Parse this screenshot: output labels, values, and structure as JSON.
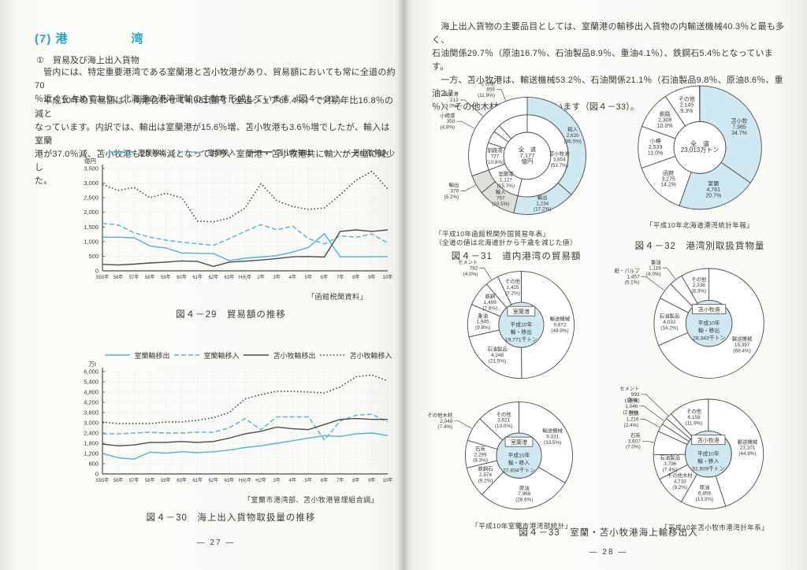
{
  "colors": {
    "accent": "#21a5c9",
    "line_cyan": "#4fb3d6",
    "line_dark": "#4d4b47",
    "pie_cyan": "#cfe9f2",
    "pie_gray": "#dfdfda",
    "ink": "#3b3935"
  },
  "left_page": {
    "page_number": "― 27 ―",
    "heading": "(7) 港　　　　　湾",
    "subheading": "①　貿易及び海上出入貨物",
    "paragraph1": [
      "　管内には、特定重要港湾である室蘭港と苫小牧港があり、貿易額においても常に全道の約70",
      "％近くを占めており、北海道の港湾運輸の主軸を形成しています（図４－31）。"
    ],
    "paragraph2": [
      "　平成10年の貿易額は、両港合わせて4,981億円（全道シェア69.4％）で対前年比16.8％の減と",
      "なっています。内訳では、輸出は室蘭港が15.6％増、苫小牧港も3.6％増でしたが、輸入は室蘭",
      "港が37.0％減、苫小牧港も20.0％減となっており、室蘭港・苫小牧港共に輸入が大幅に減少し",
      "た。"
    ],
    "fig29": {
      "caption": "図４－29　貿易額の推移",
      "source": "「函館税関資料」",
      "chart": {
        "type": "line",
        "unit": "億円",
        "ylim": [
          0,
          3500
        ],
        "yticks": [
          0,
          500,
          1000,
          1500,
          2000,
          2500,
          3000,
          3500
        ],
        "categories": [
          "S55年",
          "56年",
          "57年",
          "58年",
          "59年",
          "60年",
          "61年",
          "62年",
          "63年",
          "H元年",
          "2年",
          "3年",
          "4年",
          "5年",
          "6年",
          "7年",
          "8年",
          "9年",
          "10年"
        ],
        "series": [
          {
            "name": "室蘭輸出",
            "color": "cyan",
            "style": "solid",
            "values": [
              1150,
              1150,
              1130,
              850,
              780,
              610,
              600,
              590,
              350,
              430,
              470,
              520,
              640,
              800,
              1270,
              480,
              480,
              480,
              490
            ]
          },
          {
            "name": "室蘭輸入",
            "color": "cyan",
            "style": "dashed",
            "values": [
              1620,
              1570,
              1300,
              1150,
              1050,
              980,
              930,
              870,
              1100,
              1350,
              1580,
              1400,
              1530,
              1100,
              920,
              1200,
              1150,
              1260,
              950
            ]
          },
          {
            "name": "苫小牧輸出",
            "color": "dark",
            "style": "solid",
            "values": [
              220,
              200,
              230,
              270,
              300,
              340,
              320,
              150,
              300,
              330,
              370,
              420,
              480,
              490,
              470,
              1350,
              1400,
              1350,
              1400
            ]
          },
          {
            "name": "苫小牧輸入",
            "color": "dark",
            "style": "dotted",
            "values": [
              2950,
              2750,
              2850,
              2500,
              2650,
              2500,
              1700,
              1680,
              1800,
              2150,
              2980,
              2400,
              2200,
              2100,
              2150,
              2600,
              3100,
              3400,
              2800
            ]
          }
        ]
      }
    },
    "fig30": {
      "caption": "図４－30　海上出入貨物取扱量の推移",
      "source": "「室蘭市港湾部、苫小牧港管理組合調」",
      "chart": {
        "type": "line",
        "unit": "万t",
        "ylim": [
          0,
          6000
        ],
        "yticks": [
          0,
          600,
          1200,
          1800,
          2400,
          3000,
          3600,
          4200,
          4800,
          5400,
          6000
        ],
        "categories": [
          "S55年",
          "56年",
          "57年",
          "58年",
          "59年",
          "60年",
          "61年",
          "62年",
          "63年",
          "H元年",
          "H2年",
          "3年",
          "4年",
          "5年",
          "6年",
          "7年",
          "8年",
          "9年",
          "10年"
        ],
        "series": [
          {
            "name": "室蘭輸移出",
            "color": "cyan",
            "style": "solid",
            "values": [
              1200,
              950,
              870,
              1280,
              1220,
              1300,
              1250,
              1300,
              1400,
              1550,
              1650,
              1800,
              1950,
              2100,
              2250,
              2200,
              2350,
              2400,
              2250
            ]
          },
          {
            "name": "室蘭輸移入",
            "color": "cyan",
            "style": "dashed",
            "values": [
              2350,
              2350,
              2400,
              2450,
              2400,
              2400,
              2450,
              2450,
              2700,
              3250,
              2600,
              3350,
              3350,
              3350,
              2000,
              3100,
              3450,
              3500,
              3050
            ]
          },
          {
            "name": "苫小牧輸移出",
            "color": "dark",
            "style": "solid",
            "values": [
              1750,
              1650,
              1700,
              1850,
              1850,
              1900,
              1850,
              1900,
              2100,
              2350,
              2500,
              2750,
              2650,
              2600,
              2900,
              3200,
              3250,
              3200,
              3200
            ]
          },
          {
            "name": "苫小牧輸移入",
            "color": "dark",
            "style": "dotted",
            "values": [
              3050,
              2950,
              2950,
              2950,
              3050,
              3050,
              3150,
              3300,
              3600,
              4400,
              4650,
              4850,
              4850,
              4800,
              4750,
              5100,
              5700,
              5800,
              5450
            ]
          }
        ]
      }
    }
  },
  "right_page": {
    "page_number": "― 28 ―",
    "paragraph": [
      "　海上出入貨物の主要品目としては、室蘭港の輸移出入貨物の内輸送機械40.3％と最も多く、",
      "石油関係29.7％（原油16.7％、石油製品8.9％、重油4.1％）、鉄鋼石5.4％となっています。",
      "　一方、苫小牧港は、輸送機械53.2％、石油関係21.1％（石油製品9.8％、原油8.6％、重油2.7",
      "％）、その他木材5.9％となっています（図４－33）。"
    ],
    "fig31": {
      "caption": "図４－31　道内港湾の貿易額",
      "sources": [
        "「平成10年函館税関外国貿易年表」",
        "（全道の値は北海道計から千歳を減じた値）"
      ],
      "chart": {
        "type": "double-donut",
        "center_lines": [
          "全　道",
          "7,177",
          "億円"
        ],
        "inner": [
          {
            "name": "苫小牧港",
            "value": "3,854",
            "share": 53.7,
            "label": "in"
          },
          {
            "name": "室蘭港",
            "value": "1,127",
            "share": 15.7,
            "label": "in"
          },
          {
            "name": "釧路港",
            "value": "777",
            "share": 10.8,
            "label": "in"
          },
          {
            "name": "小樽港",
            "value": "350",
            "share": 4.9,
            "label": "out",
            "ext": 10
          },
          {
            "name": "函館港",
            "value": "213",
            "share": 3.0,
            "label": "out",
            "ext": 22
          },
          {
            "name": "その他",
            "value": "856",
            "share": 11.9,
            "label": "out",
            "ext": 6
          }
        ],
        "outer": [
          {
            "name": "輸入",
            "value": "2,620",
            "share": 36.5,
            "fill": "cyan",
            "label": "in"
          },
          {
            "name": "輸出",
            "value": "1,234",
            "share": 17.2,
            "fill": "cyan",
            "label": "in"
          },
          {
            "name": "輸入",
            "value": "757",
            "share": 10.5,
            "fill": "gray",
            "label": "in"
          },
          {
            "name": "輸出",
            "value": "370",
            "share": 5.2,
            "fill": "gray",
            "label": "out",
            "ext": 6
          },
          {
            "name": "",
            "value": "",
            "share": 30.6,
            "fill": "white",
            "label": "none"
          }
        ]
      }
    },
    "fig32": {
      "caption": "図４－32　港湾別取扱貨物量",
      "source": "「平成10年北海道港湾統計年報」",
      "chart": {
        "type": "donut",
        "center_lines": [
          "全　道",
          "23,013万トン"
        ],
        "slices": [
          {
            "name": "苫小牧",
            "value": "7,985",
            "share": 34.7,
            "fill": "cyan",
            "label": "in"
          },
          {
            "name": "室蘭",
            "value": "4,761",
            "share": 20.7,
            "fill": "cyan",
            "label": "in"
          },
          {
            "name": "函館",
            "value": "3,275",
            "share": 14.2,
            "fill": "white",
            "label": "in"
          },
          {
            "name": "小樽",
            "value": "2,539",
            "share": 11.0,
            "fill": "white",
            "label": "in"
          },
          {
            "name": "釧路",
            "value": "2,308",
            "share": 10.0,
            "fill": "white",
            "label": "in"
          },
          {
            "name": "その他",
            "value": "2,145",
            "share": 9.3,
            "fill": "white",
            "label": "in"
          }
        ]
      }
    },
    "fig33": {
      "caption": "図４－33　室蘭・苫小牧港海上輸移出入",
      "sources": [
        "「平成10年室蘭市港湾部統計」",
        "「平成10年苫小牧市港湾計年系」"
      ],
      "muroran_out": {
        "type": "pie",
        "port": "室蘭港",
        "center_lines": [
          "平成10年",
          "輸・移出",
          "19,771千トン"
        ],
        "slices": [
          {
            "name": "輸送機械",
            "value": "9,872",
            "share": 49.9,
            "label": "in"
          },
          {
            "name": "石油製品",
            "value": "4,248",
            "share": 21.5,
            "label": "in"
          },
          {
            "name": "重油",
            "value": "1,945",
            "share": 9.8,
            "label": "in"
          },
          {
            "name": "鉄鋼",
            "value": "1,499",
            "share": 7.6,
            "label": "in"
          },
          {
            "name": "セメント",
            "value": "782",
            "share": 4.0,
            "label": "out",
            "ext": 8
          },
          {
            "name": "その他",
            "value": "1,425",
            "share": 7.2,
            "label": "in"
          }
        ]
      },
      "tomakomai_out": {
        "type": "pie",
        "port": "苫小牧港",
        "center_lines": [
          "平成10年",
          "輸・移出",
          "28,343千トン"
        ],
        "slices": [
          {
            "name": "輸送機械",
            "value": "19,397",
            "share": 68.4,
            "label": "in"
          },
          {
            "name": "石油製品",
            "value": "4,032",
            "share": 14.2,
            "label": "in"
          },
          {
            "name": "紙・パルプ",
            "value": "1,457",
            "share": 5.1,
            "label": "out",
            "ext": 20
          },
          {
            "name": "重油",
            "value": "1,119",
            "share": 4.0,
            "label": "out",
            "ext": 8
          },
          {
            "name": "その他",
            "value": "2,338",
            "share": 8.3,
            "label": "in"
          }
        ]
      },
      "muroran_in": {
        "type": "pie",
        "port": "室蘭港",
        "center_lines": [
          "平成10年",
          "輸・移入",
          "27,834千トン"
        ],
        "slices": [
          {
            "name": "輸送機械",
            "value": "9,331",
            "share": 33.5,
            "label": "in"
          },
          {
            "name": "原油",
            "value": "7,968",
            "share": 28.6,
            "label": "in"
          },
          {
            "name": "鉄鋼石",
            "value": "2,574",
            "share": 9.2,
            "label": "in"
          },
          {
            "name": "石炭",
            "value": "2,299",
            "share": 8.3,
            "label": "in"
          },
          {
            "name": "その他木材",
            "value": "2,049",
            "share": 7.4,
            "label": "out",
            "ext": 10
          },
          {
            "name": "その他",
            "value": "3,621",
            "share": 13.0,
            "label": "in"
          }
        ]
      },
      "tomakomai_in": {
        "type": "pie",
        "port": "苫小牧港",
        "center_lines": [
          "平成10年",
          "輸・移入",
          "51,509千トン"
        ],
        "slices": [
          {
            "name": "輸送機械",
            "value": "23,101",
            "share": 44.9,
            "label": "in"
          },
          {
            "name": "原油",
            "value": "6,858",
            "share": 13.3,
            "label": "in"
          },
          {
            "name": "その他木材",
            "value": "4,733",
            "share": 9.2,
            "label": "in"
          },
          {
            "name": "石油製品",
            "value": "3,796",
            "share": 7.4,
            "label": "in"
          },
          {
            "name": "石炭",
            "value": "3,607",
            "share": 7.0,
            "label": "out",
            "ext": 0
          },
          {
            "name": "鉄鋼",
            "value": "1,216",
            "share": 2.4,
            "label": "out",
            "ext": 12
          },
          {
            "name": "重油",
            "value": "1,046",
            "share": 2.0,
            "label": "out",
            "ext": 22
          },
          {
            "name": "セメント",
            "value": "993",
            "share": 1.9,
            "label": "out",
            "ext": 30
          },
          {
            "name": "その他",
            "value": "6,159",
            "share": 11.9,
            "label": "in"
          }
        ]
      }
    }
  }
}
